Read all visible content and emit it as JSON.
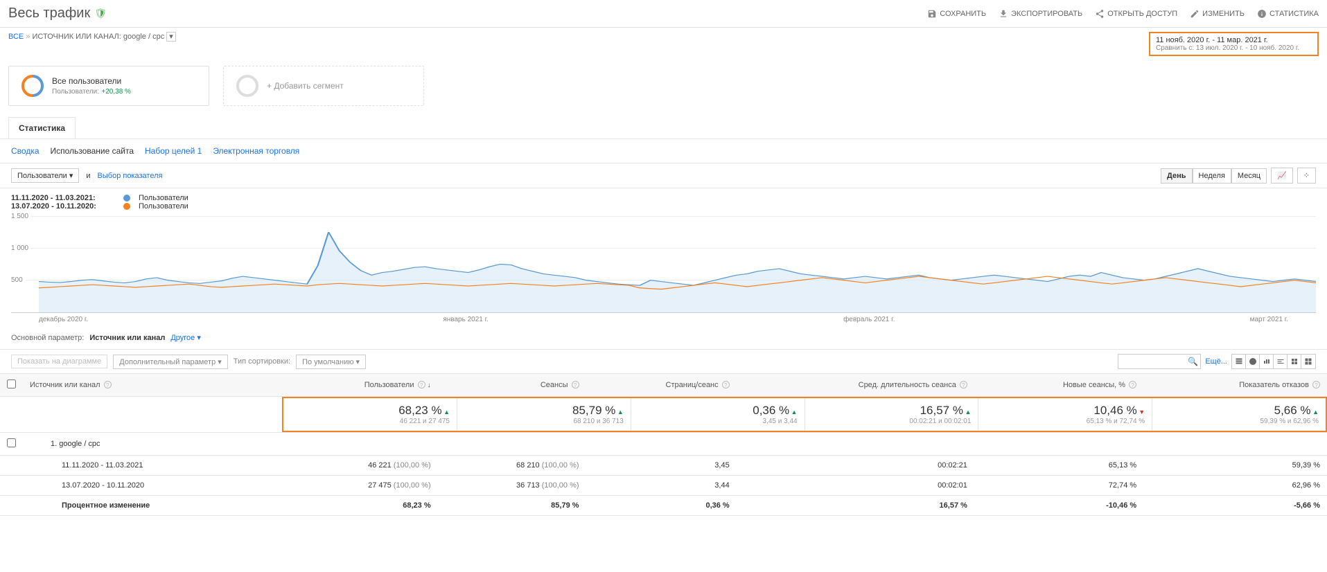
{
  "header": {
    "title": "Весь трафик",
    "toolbar": {
      "save": "СОХРАНИТЬ",
      "export": "ЭКСПОРТИРОВАТЬ",
      "share": "ОТКРЫТЬ ДОСТУП",
      "edit": "ИЗМЕНИТЬ",
      "stats": "СТАТИСТИКА"
    }
  },
  "breadcrumb": {
    "all": "ВСЕ",
    "label": "ИСТОЧНИК ИЛИ КАНАЛ:",
    "value": "google / cpc"
  },
  "date": {
    "range1": "11 нояб. 2020 г. - 11 мар. 2021 г.",
    "compare_label": "Сравнить с:",
    "range2": "13 июл. 2020 г. - 10 нояб. 2020 г."
  },
  "segments": {
    "all_users": {
      "name": "Все пользователи",
      "sub_label": "Пользователи:",
      "pct": "+20,38 %"
    },
    "add": "+ Добавить сегмент"
  },
  "tabs": {
    "stats": "Статистика"
  },
  "subtabs": {
    "summary": "Сводка",
    "usage": "Использование сайта",
    "goals": "Набор целей 1",
    "ecom": "Электронная торговля"
  },
  "chart_controls": {
    "metric": "Пользователи",
    "vs": "и",
    "select": "Выбор показателя",
    "day": "День",
    "week": "Неделя",
    "month": "Месяц"
  },
  "legend": {
    "row1_range": "11.11.2020 - 11.03.2021:",
    "row2_range": "13.07.2020 - 10.11.2020:",
    "metric": "Пользователи"
  },
  "chart": {
    "type": "line",
    "yticks": [
      "1 500",
      "1 000",
      "500"
    ],
    "ylim": [
      0,
      1500
    ],
    "xlabels": [
      "декабрь 2020 г.",
      "январь 2021 г.",
      "февраль 2021 г.",
      "март 2021 г."
    ],
    "color_a": "#5b9bd5",
    "color_b": "#f58220",
    "fill": "#d6e7f5",
    "series_a": [
      480,
      470,
      465,
      480,
      500,
      510,
      490,
      470,
      460,
      480,
      520,
      540,
      500,
      480,
      460,
      450,
      470,
      490,
      530,
      560,
      540,
      520,
      500,
      480,
      460,
      440,
      730,
      1250,
      960,
      780,
      650,
      580,
      620,
      640,
      670,
      700,
      710,
      680,
      660,
      640,
      620,
      660,
      710,
      750,
      740,
      680,
      640,
      600,
      580,
      560,
      540,
      500,
      480,
      460,
      440,
      430,
      420,
      500,
      480,
      460,
      440,
      420,
      460,
      500,
      540,
      580,
      600,
      640,
      660,
      680,
      640,
      600,
      580,
      560,
      540,
      520,
      540,
      560,
      540,
      520,
      540,
      560,
      580,
      540,
      520,
      500,
      520,
      540,
      560,
      580,
      560,
      540,
      520,
      500,
      480,
      520,
      560,
      580,
      560,
      620,
      580,
      540,
      520,
      500,
      520,
      560,
      600,
      640,
      680,
      640,
      600,
      560,
      540,
      520,
      500,
      480,
      500,
      520,
      500,
      480
    ],
    "series_b": [
      380,
      390,
      400,
      410,
      420,
      430,
      420,
      410,
      400,
      390,
      400,
      410,
      420,
      430,
      440,
      420,
      400,
      390,
      400,
      410,
      420,
      430,
      440,
      430,
      420,
      410,
      430,
      440,
      450,
      440,
      430,
      420,
      410,
      420,
      430,
      440,
      450,
      440,
      430,
      420,
      410,
      420,
      430,
      440,
      450,
      440,
      430,
      420,
      410,
      420,
      430,
      440,
      450,
      440,
      430,
      420,
      380,
      370,
      360,
      380,
      400,
      420,
      440,
      460,
      440,
      420,
      400,
      420,
      440,
      460,
      480,
      500,
      520,
      540,
      520,
      500,
      480,
      460,
      480,
      500,
      520,
      540,
      560,
      540,
      520,
      500,
      480,
      460,
      440,
      460,
      480,
      500,
      520,
      540,
      560,
      540,
      520,
      500,
      480,
      460,
      440,
      460,
      480,
      500,
      520,
      540,
      520,
      500,
      480,
      460,
      440,
      420,
      400,
      420,
      440,
      460,
      480,
      500,
      480,
      460
    ]
  },
  "row2": {
    "main_param": "Основной параметр:",
    "src": "Источник или канал",
    "other": "Другое"
  },
  "row3": {
    "show_chart": "Показать на диаграмме",
    "extra_param": "Дополнительный параметр",
    "sort_type": "Тип сортировки:",
    "default": "По умолчанию",
    "advanced": "Ещё..."
  },
  "table": {
    "headers": {
      "src": "Источник или канал",
      "users": "Пользователи",
      "sessions": "Сеансы",
      "pps": "Страниц/сеанс",
      "dur": "Сред. длительность сеанса",
      "new": "Новые сеансы, %",
      "bounce": "Показатель отказов"
    },
    "summary": {
      "users": {
        "pct": "68,23 %",
        "sub": "46 221 и 27 475",
        "dir": "up"
      },
      "sessions": {
        "pct": "85,79 %",
        "sub": "68 210 и 36 713",
        "dir": "up"
      },
      "pps": {
        "pct": "0,36 %",
        "sub": "3,45 и 3,44",
        "dir": "up"
      },
      "dur": {
        "pct": "16,57 %",
        "sub": "00:02:21 и 00:02:01",
        "dir": "up"
      },
      "new": {
        "pct": "10,46 %",
        "sub": "65,13 % и 72,74 %",
        "dir": "down"
      },
      "bounce": {
        "pct": "5,66 %",
        "sub": "59,39 % и 62,96 %",
        "dir": "up"
      }
    },
    "rows": [
      {
        "label": "1.   google / cpc",
        "pad": "padleft"
      },
      {
        "label": "11.11.2020 - 11.03.2021",
        "pad": "padleft2",
        "users": "46 221",
        "users_sub": "(100,00 %)",
        "sessions": "68 210",
        "sessions_sub": "(100,00 %)",
        "pps": "3,45",
        "dur": "00:02:21",
        "new": "65,13 %",
        "bounce": "59,39 %"
      },
      {
        "label": "13.07.2020 - 10.11.2020",
        "pad": "padleft2",
        "users": "27 475",
        "users_sub": "(100,00 %)",
        "sessions": "36 713",
        "sessions_sub": "(100,00 %)",
        "pps": "3,44",
        "dur": "00:02:01",
        "new": "72,74 %",
        "bounce": "62,96 %"
      },
      {
        "label": "Процентное изменение",
        "pad": "padleft2",
        "bold": true,
        "users": "68,23 %",
        "sessions": "85,79 %",
        "pps": "0,36 %",
        "dur": "16,57 %",
        "new": "-10,46 %",
        "bounce": "-5,66 %"
      }
    ]
  },
  "colors": {
    "blue": "#1a73e8",
    "green": "#0d904f",
    "orange_border": "#f58220"
  }
}
